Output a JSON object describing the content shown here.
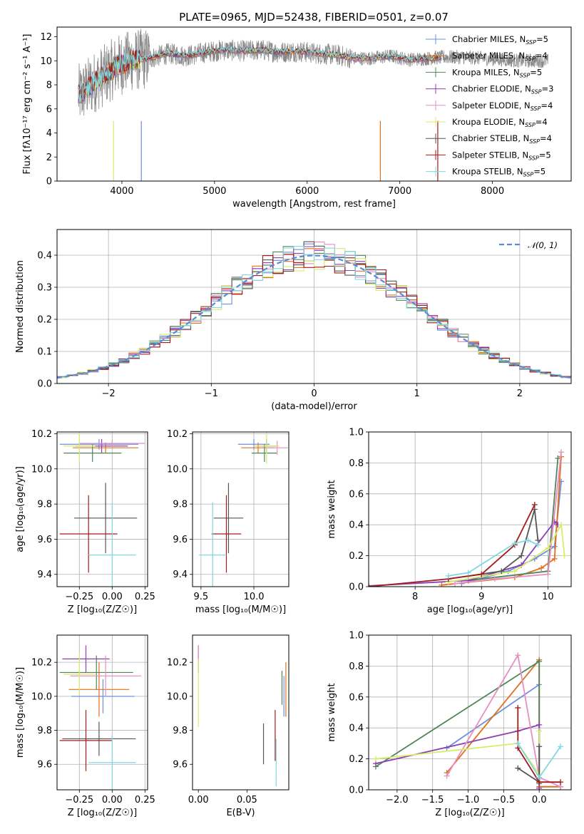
{
  "figure_title": "PLATE=0965, MJD=52438, FIBERID=0501, z=0.07",
  "series_colors": [
    "#6f8fdc",
    "#e0701c",
    "#4f8558",
    "#8e3fb0",
    "#e88fc2",
    "#d6ec6a",
    "#555555",
    "#a31b1b",
    "#7fd9e0"
  ],
  "chart_data": [
    {
      "id": "spectrum",
      "type": "line",
      "title": "PLATE=0965, MJD=52438, FIBERID=0501, z=0.07",
      "xlabel": "wavelength [Angstrom, rest frame]",
      "ylabel": "Flux [fλ10⁻¹⁷ erg cm⁻² s⁻¹ A⁻¹]",
      "xlim": [
        3300,
        8850
      ],
      "ylim": [
        0,
        12.8
      ],
      "xticks": [
        4000,
        5000,
        6000,
        7000,
        8000
      ],
      "yticks": [
        0,
        2,
        4,
        6,
        8,
        10,
        12
      ],
      "grid": false,
      "legend_position": "upper-right",
      "legend": [
        "Chabrier MILES, N_SSP=5",
        "Salpeter MILES, N_SSP=4",
        "Kroupa MILES, N_SSP=5",
        "Chabrier ELODIE, N_SSP=3",
        "Salpeter ELODIE, N_SSP=4",
        "Kroupa ELODIE, N_SSP=4",
        "Chabrier STELIB, N_SSP=4",
        "Salpeter STELIB, N_SSP=5",
        "Kroupa STELIB, N_SSP=5"
      ],
      "legend_labels": [
        {
          "name": "Chabrier MILES, N",
          "sub": "SSP",
          "val": "=5"
        },
        {
          "name": "Salpeter MILES, N",
          "sub": "SSP",
          "val": "=4"
        },
        {
          "name": "Kroupa MILES, N",
          "sub": "SSP",
          "val": "=5"
        },
        {
          "name": "Chabrier ELODIE, N",
          "sub": "SSP",
          "val": "=3"
        },
        {
          "name": "Salpeter ELODIE, N",
          "sub": "SSP",
          "val": "=4"
        },
        {
          "name": "Kroupa ELODIE, N",
          "sub": "SSP",
          "val": "=4"
        },
        {
          "name": "Chabrier STELIB, N",
          "sub": "SSP",
          "val": "=4"
        },
        {
          "name": "Salpeter STELIB, N",
          "sub": "SSP",
          "val": "=5"
        },
        {
          "name": "Kroupa STELIB, N",
          "sub": "SSP",
          "val": "=5"
        }
      ],
      "data_continuum_x": [
        3550,
        3700,
        3850,
        3950,
        4100,
        4300,
        4500,
        4700,
        4900,
        5100,
        5300,
        5500,
        5700,
        5900,
        6100,
        6300,
        6500,
        6700,
        6900,
        7100,
        7300,
        7500,
        7700,
        7900,
        8100,
        8300,
        8500
      ],
      "data_continuum_y": [
        7.2,
        8.2,
        9.0,
        9.6,
        10.0,
        10.2,
        10.6,
        10.4,
        10.7,
        10.9,
        10.8,
        10.9,
        10.7,
        10.8,
        10.6,
        10.5,
        10.2,
        10.2,
        10.4,
        10.1,
        10.2,
        10.3,
        10.3,
        10.2,
        10.1,
        10.0,
        10.0
      ],
      "observed_extent_x": [
        3530,
        8600
      ],
      "model_extent_x": [
        3530,
        7450
      ]
    },
    {
      "id": "residual_histogram",
      "type": "bar",
      "xlabel": "(data-model)/error",
      "ylabel": "Normed distribution",
      "xlim": [
        -2.5,
        2.5
      ],
      "ylim": [
        0,
        0.48
      ],
      "xticks": [
        -2,
        -1,
        0,
        1,
        2
      ],
      "yticks": [
        0.0,
        0.1,
        0.2,
        0.3,
        0.4
      ],
      "grid": true,
      "legend_position": "upper-right",
      "legend": [
        "𝒩(0, 1)"
      ],
      "reference_curve": "normal",
      "bin_width": 0.1,
      "bin_start": -2.5,
      "base_profile": [
        0.02,
        0.02,
        0.025,
        0.03,
        0.035,
        0.04,
        0.045,
        0.05,
        0.06,
        0.07,
        0.08,
        0.09,
        0.1,
        0.11,
        0.12,
        0.13,
        0.14,
        0.16,
        0.18,
        0.2,
        0.22,
        0.24,
        0.26,
        0.28,
        0.3,
        0.32,
        0.35,
        0.36,
        0.37,
        0.38,
        0.39,
        0.4,
        0.41,
        0.42,
        0.43,
        0.42,
        0.41,
        0.4,
        0.38,
        0.36,
        0.35,
        0.34,
        0.32,
        0.3,
        0.28,
        0.27,
        0.25,
        0.23,
        0.21,
        0.19,
        0.17,
        0.15,
        0.13,
        0.12,
        0.1,
        0.09,
        0.08,
        0.07,
        0.06,
        0.055,
        0.05,
        0.045,
        0.04,
        0.035,
        0.03,
        0.028,
        0.025,
        0.022,
        0.02,
        0.02
      ]
    },
    {
      "id": "age_vs_Z",
      "type": "scatter",
      "xlabel": "Z [log₁₀(Z/Z☉)]",
      "ylabel": "age  [log₁₀(age/yr)]",
      "xlim": [
        -0.42,
        0.27
      ],
      "ylim": [
        9.33,
        10.21
      ],
      "xticks": [
        -0.25,
        0.0,
        0.25
      ],
      "xtick_labels": [
        "−0.25",
        "0.00",
        "0.25"
      ],
      "yticks": [
        9.4,
        9.6,
        9.8,
        10.0,
        10.2
      ],
      "grid": true,
      "errorbars": [
        {
          "c": 0,
          "x": -0.1,
          "y": 10.14,
          "ex": 0.3,
          "ey": 0.03
        },
        {
          "c": 1,
          "x": -0.05,
          "y": 10.12,
          "ex": 0.25,
          "ey": 0.03
        },
        {
          "c": 2,
          "x": -0.15,
          "y": 10.09,
          "ex": 0.22,
          "ey": 0.05
        },
        {
          "c": 3,
          "x": -0.08,
          "y": 10.13,
          "ex": 0.2,
          "ey": 0.04
        },
        {
          "c": 4,
          "x": 0.0,
          "y": 10.145,
          "ex": 0.25,
          "ey": 0.02
        },
        {
          "c": 5,
          "x": -0.25,
          "y": 10.13,
          "ex": 0.12,
          "ey": 0.09
        },
        {
          "c": 6,
          "x": -0.05,
          "y": 9.72,
          "ex": 0.24,
          "ey": 0.2
        },
        {
          "c": 7,
          "x": -0.18,
          "y": 9.63,
          "ex": 0.22,
          "ey": 0.22
        },
        {
          "c": 8,
          "x": 0.0,
          "y": 9.51,
          "ex": 0.18,
          "ey": 0.3
        }
      ]
    },
    {
      "id": "age_vs_mass",
      "type": "scatter",
      "xlabel": "mass [log₁₀(M/M☉)]",
      "ylabel": "",
      "xlim": [
        9.42,
        10.33
      ],
      "ylim": [
        9.33,
        10.21
      ],
      "xticks": [
        9.5,
        10.0
      ],
      "xtick_labels": [
        "9.5",
        "10.0"
      ],
      "yticks": [
        9.4,
        9.6,
        9.8,
        10.0,
        10.2
      ],
      "grid": true,
      "errorbars": [
        {
          "c": 0,
          "x": 10.0,
          "y": 10.14,
          "ex": 0.15,
          "ey": 0.03
        },
        {
          "c": 1,
          "x": 10.04,
          "y": 10.12,
          "ex": 0.16,
          "ey": 0.03
        },
        {
          "c": 2,
          "x": 10.1,
          "y": 10.09,
          "ex": 0.12,
          "ey": 0.05
        },
        {
          "c": 3,
          "x": 10.12,
          "y": 10.13,
          "ex": 0.1,
          "ey": 0.04
        },
        {
          "c": 4,
          "x": 10.22,
          "y": 10.12,
          "ex": 0.1,
          "ey": 0.04
        },
        {
          "c": 5,
          "x": 10.12,
          "y": 10.13,
          "ex": 0.12,
          "ey": 0.1
        },
        {
          "c": 6,
          "x": 9.76,
          "y": 9.72,
          "ex": 0.14,
          "ey": 0.2
        },
        {
          "c": 7,
          "x": 9.74,
          "y": 9.63,
          "ex": 0.14,
          "ey": 0.22
        },
        {
          "c": 8,
          "x": 9.61,
          "y": 9.51,
          "ex": 0.13,
          "ey": 0.3
        }
      ]
    },
    {
      "id": "mass_weight_vs_age",
      "type": "line",
      "xlabel": "age  [log₁₀(age/yr)]",
      "ylabel": "mass weight",
      "xlim": [
        7.3,
        10.35
      ],
      "ylim": [
        0,
        1.0
      ],
      "xticks": [
        8,
        9,
        10
      ],
      "yticks": [
        0.0,
        0.2,
        0.4,
        0.6,
        0.8,
        1.0
      ],
      "grid": true,
      "series": [
        {
          "c": 0,
          "x": [
            8.7,
            9.4,
            9.8,
            10.1,
            10.2
          ],
          "y": [
            0.02,
            0.1,
            0.18,
            0.26,
            0.68
          ]
        },
        {
          "c": 1,
          "x": [
            8.4,
            9.5,
            9.9,
            10.1,
            10.2
          ],
          "y": [
            0.01,
            0.06,
            0.12,
            0.18,
            0.84
          ]
        },
        {
          "c": 2,
          "x": [
            8.8,
            10.0,
            10.15
          ],
          "y": [
            0.04,
            0.1,
            0.83
          ]
        },
        {
          "c": 3,
          "x": [
            7.3,
            8.8,
            9.6,
            10.1,
            10.15
          ],
          "y": [
            0.005,
            0.04,
            0.14,
            0.42,
            0.4
          ]
        },
        {
          "c": 4,
          "x": [
            8.6,
            9.2,
            10.0,
            10.2
          ],
          "y": [
            0.02,
            0.05,
            0.08,
            0.87
          ]
        },
        {
          "c": 5,
          "x": [
            8.5,
            9.5,
            10.0,
            10.2,
            10.25
          ],
          "y": [
            0.03,
            0.1,
            0.25,
            0.4,
            0.2
          ]
        },
        {
          "c": 6,
          "x": [
            8.5,
            9.3,
            9.6,
            9.8,
            9.85
          ],
          "y": [
            0.05,
            0.1,
            0.2,
            0.5,
            0.3
          ]
        },
        {
          "c": 7,
          "x": [
            7.3,
            8.5,
            9.0,
            9.5,
            9.8
          ],
          "y": [
            0.0,
            0.05,
            0.08,
            0.27,
            0.53
          ]
        },
        {
          "c": 8,
          "x": [
            8.5,
            8.8,
            9.5,
            9.7,
            9.85
          ],
          "y": [
            0.07,
            0.09,
            0.28,
            0.3,
            0.27
          ]
        }
      ]
    },
    {
      "id": "mass_vs_Z",
      "type": "scatter",
      "xlabel": "Z [log₁₀(Z/Z☉)]",
      "ylabel": "mass [log₁₀(M/M☉)]",
      "xlim": [
        -0.42,
        0.27
      ],
      "ylim": [
        9.45,
        10.36
      ],
      "xticks": [
        -0.25,
        0.0,
        0.25
      ],
      "xtick_labels": [
        "−0.25",
        "0.00",
        "0.25"
      ],
      "yticks": [
        9.6,
        9.8,
        10.0,
        10.2
      ],
      "grid": true,
      "errorbars": [
        {
          "c": 0,
          "x": -0.07,
          "y": 10.0,
          "ex": 0.24,
          "ey": 0.1
        },
        {
          "c": 1,
          "x": -0.1,
          "y": 10.04,
          "ex": 0.23,
          "ey": 0.16
        },
        {
          "c": 2,
          "x": -0.12,
          "y": 10.14,
          "ex": 0.28,
          "ey": 0.1
        },
        {
          "c": 3,
          "x": -0.2,
          "y": 10.22,
          "ex": 0.18,
          "ey": 0.08
        },
        {
          "c": 4,
          "x": -0.05,
          "y": 10.12,
          "ex": 0.27,
          "ey": 0.12
        },
        {
          "c": 5,
          "x": -0.25,
          "y": 10.13,
          "ex": 0.12,
          "ey": 0.12
        },
        {
          "c": 6,
          "x": -0.1,
          "y": 9.75,
          "ex": 0.28,
          "ey": 0.1
        },
        {
          "c": 7,
          "x": -0.2,
          "y": 9.74,
          "ex": 0.2,
          "ey": 0.18
        },
        {
          "c": 8,
          "x": 0.0,
          "y": 9.61,
          "ex": 0.18,
          "ey": 0.16
        }
      ]
    },
    {
      "id": "mass_vs_ebv",
      "type": "scatter",
      "xlabel": "E(B-V)",
      "ylabel": "",
      "xlim": [
        -0.006,
        0.093
      ],
      "ylim": [
        9.45,
        10.36
      ],
      "xticks": [
        0.0,
        0.05
      ],
      "xtick_labels": [
        "0.00",
        "0.05"
      ],
      "yticks": [
        9.6,
        9.8,
        10.0,
        10.2
      ],
      "grid": false,
      "errorbars": [
        {
          "c": 0,
          "x": 0.088,
          "y": 10.0,
          "ex": 0,
          "ey": 0.12
        },
        {
          "c": 1,
          "x": 0.09,
          "y": 10.04,
          "ex": 0,
          "ey": 0.16
        },
        {
          "c": 2,
          "x": 0.086,
          "y": 10.05,
          "ex": 0,
          "ey": 0.1
        },
        {
          "c": 3,
          "x": 0.0,
          "y": 10.22,
          "ex": 0,
          "ey": 0.08
        },
        {
          "c": 4,
          "x": 0.0,
          "y": 10.24,
          "ex": 0,
          "ey": 0.06
        },
        {
          "c": 5,
          "x": 0.0,
          "y": 10.02,
          "ex": 0,
          "ey": 0.2
        },
        {
          "c": 6,
          "x": 0.067,
          "y": 9.72,
          "ex": 0,
          "ey": 0.12
        },
        {
          "c": 7,
          "x": 0.079,
          "y": 9.77,
          "ex": 0,
          "ey": 0.15
        },
        {
          "c": 8,
          "x": 0.08,
          "y": 9.61,
          "ex": 0,
          "ey": 0.14
        }
      ]
    },
    {
      "id": "mass_weight_vs_Z",
      "type": "line",
      "xlabel": "Z [log₁₀(Z/Z☉)]",
      "ylabel": "mass weight",
      "xlim": [
        -2.4,
        0.45
      ],
      "ylim": [
        0,
        1.0
      ],
      "xticks": [
        -2.0,
        -1.5,
        -1.0,
        -0.5,
        0.0
      ],
      "xtick_labels": [
        "−2.0",
        "−1.5",
        "−1.0",
        "−0.5",
        "0.0"
      ],
      "yticks": [
        0.0,
        0.2,
        0.4,
        0.6,
        0.8,
        1.0
      ],
      "grid": true,
      "series": [
        {
          "c": 0,
          "x": [
            -1.3,
            0.0,
            0.0,
            0.3
          ],
          "y": [
            0.27,
            0.68,
            0.02,
            0.02
          ]
        },
        {
          "c": 1,
          "x": [
            -1.3,
            0.0,
            0.0,
            0.3
          ],
          "y": [
            0.11,
            0.84,
            0.02,
            0.02
          ]
        },
        {
          "c": 2,
          "x": [
            -2.3,
            0.0,
            0.0
          ],
          "y": [
            0.15,
            0.83,
            0.04
          ]
        },
        {
          "c": 3,
          "x": [
            -2.3,
            -0.3,
            0.0,
            0.0
          ],
          "y": [
            0.17,
            0.38,
            0.42,
            0.01
          ]
        },
        {
          "c": 4,
          "x": [
            -1.3,
            -0.3,
            0.0,
            0.3
          ],
          "y": [
            0.09,
            0.87,
            0.08,
            0.02
          ]
        },
        {
          "c": 5,
          "x": [
            -2.3,
            -0.3,
            0.0,
            0.0
          ],
          "y": [
            0.2,
            0.3,
            0.1,
            0.38
          ]
        },
        {
          "c": 6,
          "x": [
            -0.3,
            0.0,
            0.0
          ],
          "y": [
            0.14,
            0.05,
            0.28
          ]
        },
        {
          "c": 7,
          "x": [
            -0.3,
            -0.3,
            0.0,
            0.3
          ],
          "y": [
            0.53,
            0.27,
            0.05,
            0.05
          ]
        },
        {
          "c": 8,
          "x": [
            -0.3,
            0.0,
            0.3
          ],
          "y": [
            0.3,
            0.08,
            0.28
          ]
        }
      ]
    }
  ]
}
